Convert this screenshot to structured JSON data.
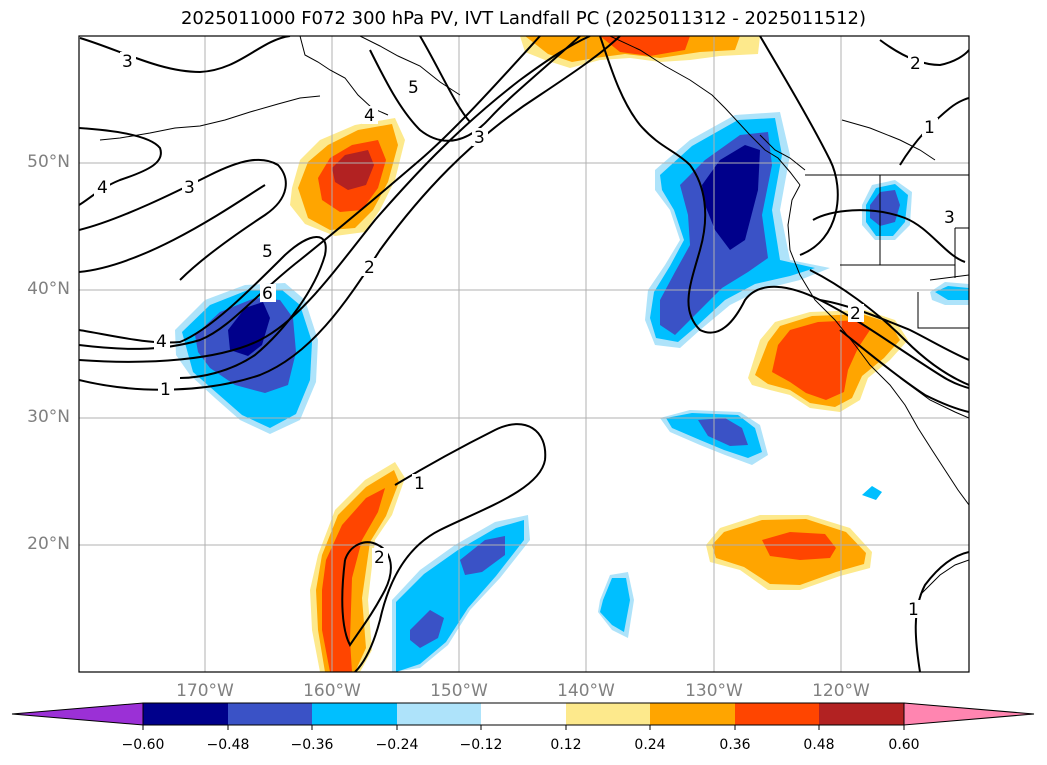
{
  "title": "2025011000 F072 300 hPa PV, IVT Landfall PC (2025011312 - 2025011512)",
  "lat_labels": [
    "50°N",
    "40°N",
    "30°N",
    "20°N"
  ],
  "lon_labels": [
    "170°W",
    "160°W",
    "150°W",
    "140°W",
    "130°W",
    "120°W"
  ],
  "contour_labels": [
    "3",
    "4",
    "5",
    "3",
    "4",
    "5",
    "6",
    "4",
    "1",
    "2",
    "3",
    "2",
    "1",
    "2",
    "3",
    "2",
    "1",
    "1"
  ],
  "colorbar": {
    "ticks": [
      "−0.60",
      "−0.48",
      "−0.36",
      "−0.24",
      "−0.12",
      "0.12",
      "0.24",
      "0.36",
      "0.48",
      "0.60"
    ],
    "colors": [
      "#9b30d6",
      "#00008b",
      "#3a52c6",
      "#00bfff",
      "#aee3fa",
      "#ffffff",
      "#fde98c",
      "#ffa500",
      "#ff4500",
      "#b22222",
      "#ff85b0"
    ]
  },
  "shading_colors": {
    "neg_light": "#aee3fa",
    "neg_mid": "#00bfff",
    "neg_strong": "#3a52c6",
    "neg_max": "#00008b",
    "pos_light": "#fde98c",
    "pos_mid": "#ffa500",
    "pos_strong": "#ff4500",
    "pos_max": "#b22222"
  }
}
